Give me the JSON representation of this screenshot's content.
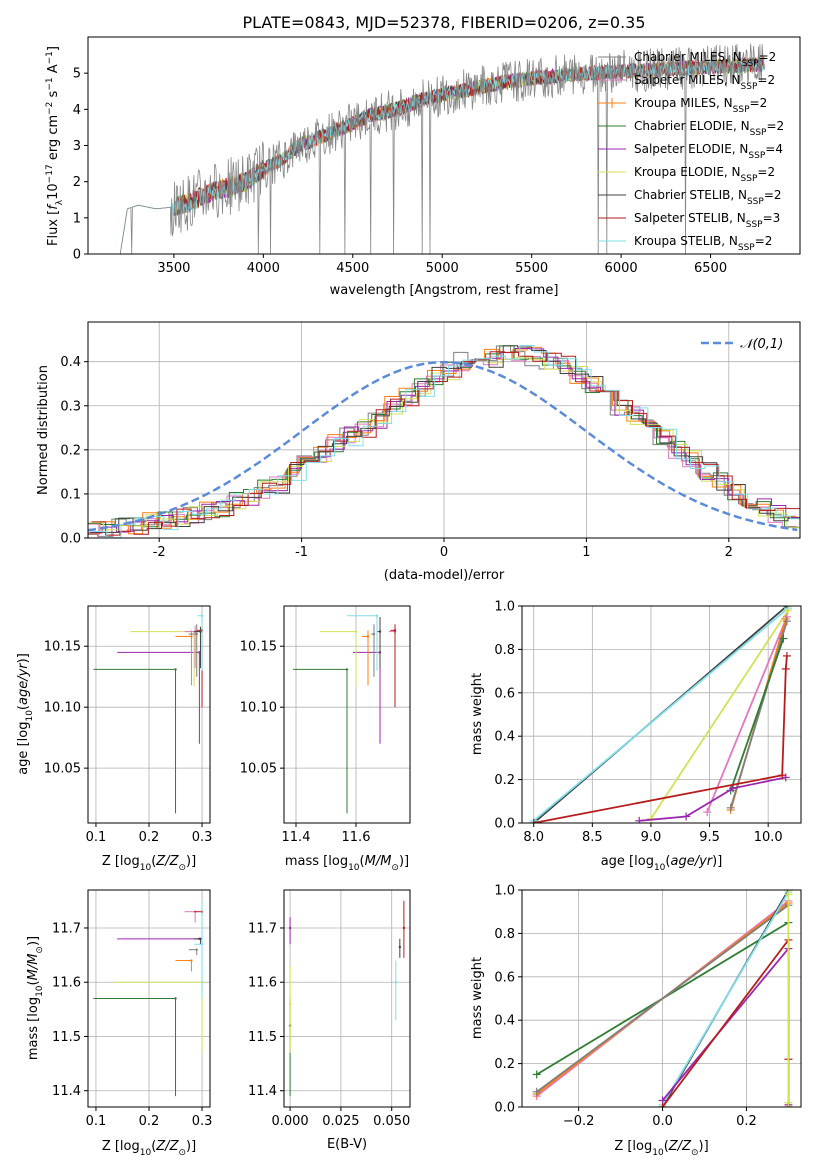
{
  "figure_title": "PLATE=0843, MJD=52378, FIBERID=0206, z=0.35",
  "colors": {
    "Chabrier MILES": "#7f7f7f",
    "Salpeter MILES": "#e377c2",
    "Kroupa MILES": "#ff7f0e",
    "Chabrier ELODIE": "#2e7d32",
    "Salpeter ELODIE": "#9c27b0",
    "Kroupa ELODIE": "#d4e157",
    "Chabrier STELIB": "#404040",
    "Salpeter STELIB": "#b71c1c",
    "Kroupa STELIB": "#80deea",
    "gaussian": "#5b8bd9"
  },
  "chart_data": [
    {
      "id": "spectrum",
      "type": "line",
      "title": "PLATE=0843, MJD=52378, FIBERID=0206, z=0.35",
      "xlabel": "wavelength [Angstrom, rest frame]",
      "ylabel": "Flux [f_λ 10^-17 erg cm^-2 s^-1 A^-1]",
      "xlim": [
        3020,
        7000
      ],
      "ylim": [
        0,
        6
      ],
      "xticks": [
        3500,
        4000,
        4500,
        5000,
        5500,
        6000,
        6500
      ],
      "yticks": [
        0,
        1,
        2,
        3,
        4,
        5
      ],
      "grid": false,
      "legend_position": "top-right",
      "series": [
        {
          "name": "Chabrier MILES, N_SSP=2",
          "label_main": "Chabrier MILES, N",
          "label_sub": "SSP",
          "label_end": "=2",
          "marker": "none"
        },
        {
          "name": "Salpeter MILES, N_SSP=2",
          "label_main": "Salpeter MILES, N",
          "label_sub": "SSP",
          "label_end": "=2",
          "marker": "none"
        },
        {
          "name": "Kroupa MILES, N_SSP=2",
          "label_main": "Kroupa MILES, N",
          "label_sub": "SSP",
          "label_end": "=2",
          "marker": "plus"
        },
        {
          "name": "Chabrier ELODIE, N_SSP=2",
          "label_main": "Chabrier ELODIE, N",
          "label_sub": "SSP",
          "label_end": "=2",
          "marker": "none"
        },
        {
          "name": "Salpeter ELODIE, N_SSP=4",
          "label_main": "Salpeter ELODIE, N",
          "label_sub": "SSP",
          "label_end": "=4",
          "marker": "none"
        },
        {
          "name": "Kroupa ELODIE, N_SSP=2",
          "label_main": "Kroupa ELODIE, N",
          "label_sub": "SSP",
          "label_end": "=2",
          "marker": "none"
        },
        {
          "name": "Chabrier STELIB, N_SSP=2",
          "label_main": "Chabrier STELIB, N",
          "label_sub": "SSP",
          "label_end": "=2",
          "marker": "none"
        },
        {
          "name": "Salpeter STELIB, N_SSP=3",
          "label_main": "Salpeter STELIB, N",
          "label_sub": "SSP",
          "label_end": "=3",
          "marker": "none"
        },
        {
          "name": "Kroupa STELIB, N_SSP=2",
          "label_main": "Kroupa STELIB, N",
          "label_sub": "SSP",
          "label_end": "=2",
          "marker": "none"
        }
      ],
      "observed_trend": {
        "x": [
          3200,
          3240,
          3300,
          3400,
          3500,
          3600,
          3700,
          3800,
          3900,
          4000,
          4100,
          4200,
          4300,
          4400,
          4500,
          4600,
          4700,
          4800,
          4900,
          5000,
          5200,
          5400,
          5600,
          5800,
          6000,
          6200,
          6400,
          6600,
          6800
        ],
        "y": [
          0,
          1.25,
          1.35,
          1.25,
          1.3,
          1.45,
          1.7,
          1.85,
          2.0,
          2.35,
          2.6,
          3.0,
          3.2,
          3.4,
          3.6,
          3.85,
          3.95,
          4.1,
          4.3,
          4.4,
          4.6,
          4.8,
          4.9,
          5.0,
          5.05,
          5.1,
          5.15,
          5.2,
          5.25
        ]
      }
    },
    {
      "id": "residuals",
      "type": "step",
      "xlabel": "(data-model)/error",
      "ylabel": "Normed distribution",
      "xlim": [
        -2.5,
        2.5
      ],
      "ylim": [
        0,
        0.49
      ],
      "xticks": [
        -2,
        -1,
        0,
        1,
        2
      ],
      "yticks": [
        0.0,
        0.1,
        0.2,
        0.3,
        0.4
      ],
      "grid": true,
      "legend_position": "top-right",
      "legend_label": "𝒩(0,1)",
      "bins_start": -2.5,
      "bin_width": 0.1,
      "series_base": [
        0.02,
        0.02,
        0.025,
        0.03,
        0.035,
        0.04,
        0.045,
        0.05,
        0.06,
        0.07,
        0.085,
        0.095,
        0.11,
        0.12,
        0.15,
        0.17,
        0.19,
        0.215,
        0.23,
        0.25,
        0.27,
        0.3,
        0.32,
        0.34,
        0.37,
        0.38,
        0.4,
        0.42,
        0.41,
        0.42,
        0.42,
        0.41,
        0.4,
        0.39,
        0.37,
        0.35,
        0.33,
        0.3,
        0.28,
        0.25,
        0.23,
        0.2,
        0.18,
        0.15,
        0.13,
        0.1,
        0.08,
        0.07,
        0.055,
        0.045
      ]
    },
    {
      "id": "age_vs_Z",
      "type": "errorbar",
      "xlabel": "Z [log10(Z/Z☉)]",
      "ylabel": "age [log10(age/yr)]",
      "xlim": [
        0.085,
        0.315
      ],
      "ylim": [
        10.005,
        10.183
      ],
      "xticks": [
        0.1,
        0.2,
        0.3
      ],
      "yticks": [
        10.05,
        10.1,
        10.15
      ],
      "grid": true,
      "points": [
        {
          "series": "Chabrier ELODIE",
          "x": 0.25,
          "xerr_low": 0.155,
          "y": 10.131,
          "yerr_low": 0.118,
          "yerr_high": 0
        },
        {
          "series": "Salpeter ELODIE",
          "x": 0.295,
          "xerr_low": 0.155,
          "y": 10.145,
          "yerr_low": 0.075,
          "yerr_high": 0
        },
        {
          "series": "Kroupa ELODIE",
          "x": 0.285,
          "xerr_low": 0.12,
          "y": 10.162,
          "yerr_low": 0.045,
          "yerr_high": 0
        },
        {
          "series": "Kroupa MILES",
          "x": 0.28,
          "xerr_low": 0.03,
          "y": 10.158,
          "yerr_low": 0.04,
          "yerr_high": 0.005
        },
        {
          "series": "Salpeter MILES",
          "x": 0.287,
          "xerr_low": 0.02,
          "y": 10.162,
          "yerr_low": 0.03,
          "yerr_high": 0.005
        },
        {
          "series": "Chabrier MILES",
          "x": 0.29,
          "xerr_low": 0.015,
          "y": 10.16,
          "yerr_low": 0.035,
          "yerr_high": 0.008
        },
        {
          "series": "Chabrier STELIB",
          "x": 0.297,
          "xerr_low": 0.012,
          "y": 10.162,
          "yerr_low": 0.03,
          "yerr_high": 0.004
        },
        {
          "series": "Salpeter STELIB",
          "x": 0.3,
          "xerr_low": 0.01,
          "y": 10.163,
          "yerr_low": 0.063,
          "yerr_high": 0.004
        },
        {
          "series": "Kroupa STELIB",
          "x": 0.3,
          "xerr_low": 0.008,
          "y": 10.175,
          "yerr_low": 0.045,
          "yerr_high": 0
        }
      ]
    },
    {
      "id": "age_vs_mass",
      "type": "errorbar",
      "xlabel": "mass [log10(M/M☉)]",
      "ylabel": "",
      "xlim": [
        11.36,
        11.78
      ],
      "ylim": [
        10.005,
        10.183
      ],
      "xticks": [
        11.4,
        11.6
      ],
      "yticks": [
        10.05,
        10.1,
        10.15
      ],
      "grid": true,
      "points": [
        {
          "series": "Chabrier ELODIE",
          "x": 11.57,
          "xerr_low": 0.18,
          "y": 10.131,
          "yerr_low": 0.118,
          "yerr_high": 0
        },
        {
          "series": "Salpeter ELODIE",
          "x": 11.68,
          "xerr_low": 0.09,
          "y": 10.145,
          "yerr_low": 0.075,
          "yerr_high": 0
        },
        {
          "series": "Kroupa ELODIE",
          "x": 11.6,
          "xerr_low": 0.12,
          "y": 10.162,
          "yerr_low": 0.045,
          "yerr_high": 0
        },
        {
          "series": "Kroupa MILES",
          "x": 11.64,
          "xerr_low": 0.02,
          "y": 10.158,
          "yerr_low": 0.04,
          "yerr_high": 0.005
        },
        {
          "series": "Salpeter MILES",
          "x": 11.73,
          "xerr_low": 0.02,
          "y": 10.162,
          "yerr_low": 0.03,
          "yerr_high": 0.005
        },
        {
          "series": "Chabrier MILES",
          "x": 11.66,
          "xerr_low": 0.01,
          "y": 10.16,
          "yerr_low": 0.035,
          "yerr_high": 0.008
        },
        {
          "series": "Chabrier STELIB",
          "x": 11.68,
          "xerr_low": 0.01,
          "y": 10.162,
          "yerr_low": 0.03,
          "yerr_high": 0.012
        },
        {
          "series": "Salpeter STELIB",
          "x": 11.73,
          "xerr_low": 0.015,
          "y": 10.163,
          "yerr_low": 0.063,
          "yerr_high": 0.005
        },
        {
          "series": "Kroupa STELIB",
          "x": 11.67,
          "xerr_low": 0.1,
          "y": 10.175,
          "yerr_low": 0.045,
          "yerr_high": 0
        }
      ]
    },
    {
      "id": "mass_weight_vs_age",
      "type": "line",
      "xlabel": "age [log10(age/yr)]",
      "ylabel": "mass weight",
      "xlim": [
        7.9,
        10.28
      ],
      "ylim": [
        0,
        1
      ],
      "xticks": [
        8.0,
        8.5,
        9.0,
        9.5,
        10.0
      ],
      "yticks": [
        0.0,
        0.2,
        0.4,
        0.6,
        0.8,
        1.0
      ],
      "grid": true,
      "series": [
        {
          "series": "Chabrier STELIB",
          "x": [
            8.0,
            10.16
          ],
          "y": [
            0.0,
            1.0
          ]
        },
        {
          "series": "Kroupa STELIB",
          "x": [
            8.0,
            10.17
          ],
          "y": [
            0.01,
            0.99
          ]
        },
        {
          "series": "Kroupa ELODIE",
          "x": [
            9.0,
            10.17
          ],
          "y": [
            0.02,
            0.98
          ]
        },
        {
          "series": "Salpeter MILES",
          "x": [
            9.48,
            10.16
          ],
          "y": [
            0.05,
            0.95
          ]
        },
        {
          "series": "Kroupa MILES",
          "x": [
            9.68,
            10.15
          ],
          "y": [
            0.06,
            0.94
          ]
        },
        {
          "series": "Chabrier MILES",
          "x": [
            9.68,
            10.16
          ],
          "y": [
            0.07,
            0.93
          ]
        },
        {
          "series": "Chabrier ELODIE",
          "x": [
            9.68,
            10.13
          ],
          "y": [
            0.15,
            0.85
          ]
        },
        {
          "series": "Salpeter ELODIE",
          "x": [
            8.9,
            9.3,
            9.7,
            10.15
          ],
          "y": [
            0.01,
            0.03,
            0.16,
            0.21
          ]
        },
        {
          "series": "Salpeter STELIB",
          "x": [
            8.0,
            10.12,
            10.15,
            10.16
          ],
          "y": [
            0.0,
            0.22,
            0.71,
            0.77
          ]
        }
      ]
    },
    {
      "id": "mass_vs_Z",
      "type": "errorbar",
      "xlabel": "Z [log10(Z/Z☉)]",
      "ylabel": "mass [log10(M/M☉)]",
      "xlim": [
        0.085,
        0.315
      ],
      "ylim": [
        11.37,
        11.77
      ],
      "xticks": [
        0.1,
        0.2,
        0.3
      ],
      "yticks": [
        11.4,
        11.5,
        11.6,
        11.7
      ],
      "grid": true,
      "points": [
        {
          "series": "Chabrier ELODIE",
          "x": 0.25,
          "xerr_low": 0.155,
          "y": 11.57,
          "yerr_low": 0.18,
          "yerr_high": 0.0
        },
        {
          "series": "Salpeter ELODIE",
          "x": 0.295,
          "xerr_low": 0.155,
          "y": 11.68,
          "yerr_low": 0.0,
          "yerr_high": 0.0
        },
        {
          "series": "Kroupa ELODIE",
          "x": 0.3,
          "xerr_low": 0.165,
          "y": 11.6,
          "yerr_low": 0.13,
          "yerr_high": 0.0
        },
        {
          "series": "Kroupa MILES",
          "x": 0.28,
          "xerr_low": 0.03,
          "y": 11.64,
          "yerr_low": 0.02,
          "yerr_high": 0.0
        },
        {
          "series": "Salpeter MILES",
          "x": 0.287,
          "xerr_low": 0.02,
          "y": 11.73,
          "yerr_low": 0.02,
          "yerr_high": 0.0
        },
        {
          "series": "Chabrier MILES",
          "x": 0.29,
          "xerr_low": 0.015,
          "y": 11.66,
          "yerr_low": 0.01,
          "yerr_high": 0.0
        },
        {
          "series": "Chabrier STELIB",
          "x": 0.297,
          "xerr_low": 0.012,
          "y": 11.68,
          "yerr_low": 0.01,
          "yerr_high": 0.0
        },
        {
          "series": "Salpeter STELIB",
          "x": 0.3,
          "xerr_low": 0.015,
          "y": 11.73,
          "yerr_low": 0.0,
          "yerr_high": 0.0
        },
        {
          "series": "Kroupa STELIB",
          "x": 0.3,
          "xerr_low": 0.015,
          "y": 11.67,
          "yerr_low": 0.1,
          "yerr_high": 0.08
        }
      ]
    },
    {
      "id": "mass_vs_EBV",
      "type": "errorbar",
      "xlabel": "E(B-V)",
      "ylabel": "",
      "xlim": [
        -0.003,
        0.059
      ],
      "ylim": [
        11.37,
        11.77
      ],
      "xticks": [
        0.0,
        0.025,
        0.05
      ],
      "yticks": [
        11.4,
        11.5,
        11.6,
        11.7
      ],
      "grid": true,
      "points": [
        {
          "series": "Chabrier ELODIE",
          "x": 0.0,
          "y": 11.52,
          "yerr_low": 0.13,
          "yerr_high": 0.05
        },
        {
          "series": "Salpeter ELODIE",
          "x": 0.0,
          "y": 11.7,
          "yerr_low": 0.03,
          "yerr_high": 0.02
        },
        {
          "series": "Kroupa ELODIE",
          "x": 0.0,
          "y": 11.56,
          "yerr_low": 0.09,
          "yerr_high": 0.07
        },
        {
          "series": "Kroupa STELIB",
          "x": 0.052,
          "y": 11.6,
          "yerr_low": 0.07,
          "yerr_high": 0.04
        },
        {
          "series": "Chabrier STELIB",
          "x": 0.054,
          "y": 11.665,
          "yerr_low": 0.02,
          "yerr_high": 0.015
        },
        {
          "series": "Salpeter STELIB",
          "x": 0.056,
          "y": 11.7,
          "yerr_low": 0.055,
          "yerr_high": 0.05
        }
      ]
    },
    {
      "id": "mass_weight_vs_Z",
      "type": "line",
      "xlabel": "Z [log10(Z/Z☉)]",
      "ylabel": "mass weight",
      "xlim": [
        -0.335,
        0.33
      ],
      "ylim": [
        0,
        1
      ],
      "xticks": [
        -0.2,
        0.0,
        0.2
      ],
      "yticks": [
        0.0,
        0.2,
        0.4,
        0.6,
        0.8,
        1.0
      ],
      "grid": true,
      "series": [
        {
          "series": "Chabrier ELODIE",
          "x": [
            -0.3,
            0.3
          ],
          "y": [
            0.15,
            0.85
          ]
        },
        {
          "series": "Salpeter MILES",
          "x": [
            -0.3,
            0.3
          ],
          "y": [
            0.05,
            0.95
          ]
        },
        {
          "series": "Kroupa MILES",
          "x": [
            -0.3,
            0.3
          ],
          "y": [
            0.06,
            0.94
          ]
        },
        {
          "series": "Chabrier MILES",
          "x": [
            -0.3,
            0.3
          ],
          "y": [
            0.07,
            0.93
          ]
        },
        {
          "series": "Chabrier STELIB",
          "x": [
            0.0,
            0.3
          ],
          "y": [
            0.0,
            1.0
          ]
        },
        {
          "series": "Kroupa STELIB",
          "x": [
            0.0,
            0.3
          ],
          "y": [
            0.01,
            0.99
          ]
        },
        {
          "series": "Salpeter ELODIE",
          "x": [
            0.0,
            0.3,
            0.3
          ],
          "y": [
            0.03,
            0.73,
            0.01
          ]
        },
        {
          "series": "Salpeter STELIB",
          "x": [
            0.0,
            0.3,
            0.3,
            0.3
          ],
          "y": [
            0.0,
            0.77,
            0.22,
            0.0
          ]
        },
        {
          "series": "Kroupa ELODIE",
          "x": [
            0.3,
            0.3
          ],
          "y": [
            0.02,
            0.98
          ]
        }
      ]
    }
  ]
}
